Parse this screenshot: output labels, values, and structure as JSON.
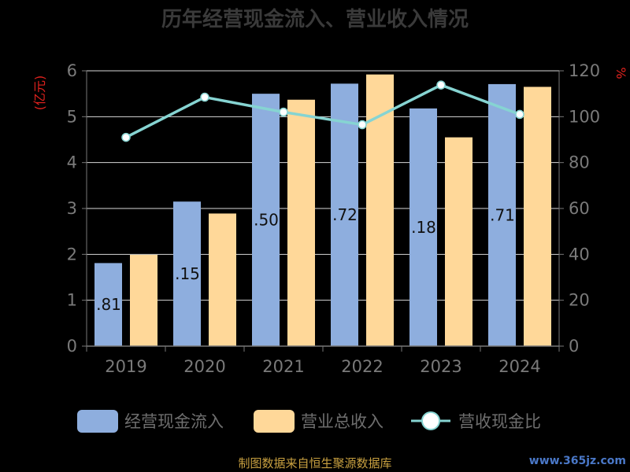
{
  "chart_data": {
    "type": "bar",
    "title": "历年经营现金流入、营业收入情况",
    "categories": [
      "2019",
      "2020",
      "2021",
      "2022",
      "2023",
      "2024"
    ],
    "y_left_unit": "(亿元)",
    "y_right_unit": "%",
    "y_left_lim": [
      0,
      6
    ],
    "y_left_ticks": [
      "0",
      "1",
      "2",
      "3",
      "4",
      "5",
      "6"
    ],
    "y_right_lim": [
      0,
      120
    ],
    "y_right_ticks": [
      "0",
      "20",
      "40",
      "60",
      "80",
      "100",
      "120"
    ],
    "series": [
      {
        "name": "经营现金流入",
        "type": "bar",
        "axis": "left",
        "color": "#8eaede",
        "values": [
          1.81,
          3.15,
          5.5,
          5.72,
          5.18,
          5.71
        ],
        "data_labels": [
          ".81",
          ".15",
          ".50",
          ".72",
          ".18",
          ".71"
        ]
      },
      {
        "name": "营业总收入",
        "type": "bar",
        "axis": "left",
        "color": "#ffd899",
        "values": [
          1.99,
          2.89,
          5.37,
          5.92,
          4.55,
          5.65
        ]
      },
      {
        "name": "营收现金比",
        "type": "line",
        "axis": "right",
        "color": "#86d4d2",
        "values": [
          91,
          108.5,
          102,
          96.5,
          113.8,
          101
        ]
      }
    ],
    "grid": true,
    "legend_position": "bottom"
  },
  "source_text": "制图数据来自恒生聚源数据库",
  "watermark_text": "www.365jz.com"
}
